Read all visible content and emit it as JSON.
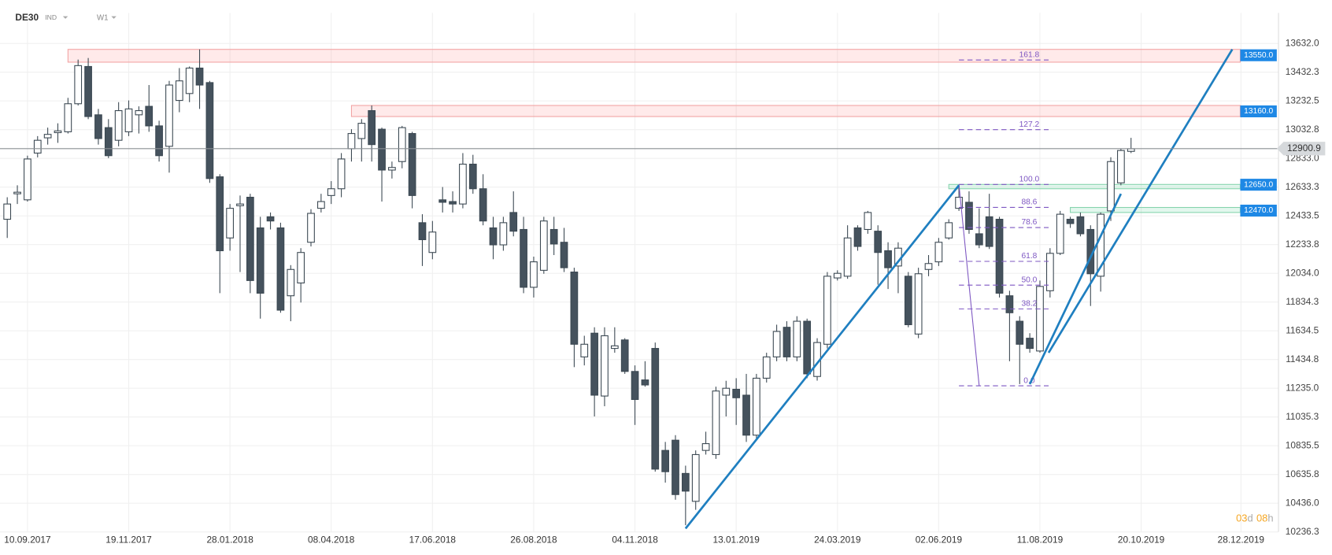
{
  "header": {
    "symbol": "DE30",
    "market": "IND",
    "timeframe": "W1"
  },
  "countdown": {
    "days": "03",
    "days_unit": "d",
    "hours": "08",
    "hours_unit": "h"
  },
  "chart_data": {
    "type": "candlestick",
    "x": [
      "27.08.2017",
      "03.09.2017",
      "10.09.2017",
      "17.09.2017",
      "24.09.2017",
      "01.10.2017",
      "08.10.2017",
      "15.10.2017",
      "22.10.2017",
      "29.10.2017",
      "05.11.2017",
      "12.11.2017",
      "19.11.2017",
      "26.11.2017",
      "03.12.2017",
      "10.12.2017",
      "17.12.2017",
      "24.12.2017",
      "31.12.2017",
      "07.01.2018",
      "14.01.2018",
      "21.01.2018",
      "28.01.2018",
      "04.02.2018",
      "11.02.2018",
      "18.02.2018",
      "25.02.2018",
      "04.03.2018",
      "11.03.2018",
      "18.03.2018",
      "25.03.2018",
      "01.04.2018",
      "08.04.2018",
      "15.04.2018",
      "22.04.2018",
      "29.04.2018",
      "06.05.2018",
      "13.05.2018",
      "20.05.2018",
      "27.05.2018",
      "03.06.2018",
      "10.06.2018",
      "17.06.2018",
      "24.06.2018",
      "01.07.2018",
      "08.07.2018",
      "15.07.2018",
      "22.07.2018",
      "29.07.2018",
      "05.08.2018",
      "12.08.2018",
      "19.08.2018",
      "26.08.2018",
      "02.09.2018",
      "09.09.2018",
      "16.09.2018",
      "23.09.2018",
      "30.09.2018",
      "07.10.2018",
      "14.10.2018",
      "21.10.2018",
      "28.10.2018",
      "04.11.2018",
      "11.11.2018",
      "18.11.2018",
      "25.11.2018",
      "02.12.2018",
      "09.12.2018",
      "16.12.2018",
      "23.12.2018",
      "30.12.2018",
      "06.01.2019",
      "13.01.2019",
      "20.01.2019",
      "27.01.2019",
      "03.02.2019",
      "10.02.2019",
      "17.02.2019",
      "24.02.2019",
      "03.03.2019",
      "10.03.2019",
      "17.03.2019",
      "24.03.2019",
      "31.03.2019",
      "07.04.2019",
      "14.04.2019",
      "21.04.2019",
      "28.04.2019",
      "05.05.2019",
      "12.05.2019",
      "19.05.2019",
      "26.05.2019",
      "02.06.2019",
      "09.06.2019",
      "16.06.2019",
      "23.06.2019",
      "30.06.2019",
      "07.07.2019",
      "14.07.2019",
      "21.07.2019",
      "28.07.2019",
      "04.08.2019",
      "11.08.2019",
      "18.08.2019",
      "25.08.2019",
      "01.09.2019",
      "08.09.2019",
      "15.09.2019",
      "22.09.2019",
      "29.09.2019",
      "06.10.2019",
      "13.10.2019"
    ],
    "open": [
      12410,
      12587,
      12545,
      12870,
      12976,
      13012,
      13018,
      13213,
      13472,
      13136,
      13047,
      12959,
      13018,
      13136,
      13195,
      13059,
      12917,
      13236,
      13284,
      13461,
      13360,
      12705,
      12280,
      12504,
      12563,
      12350,
      12427,
      12350,
      11878,
      11967,
      12250,
      12486,
      12575,
      12622,
      12900,
      12971,
      13165,
      13036,
      12752,
      12811,
      13006,
      12386,
      12179,
      12545,
      12533,
      12516,
      12793,
      12622,
      12350,
      12232,
      12457,
      12339,
      11937,
      12055,
      12339,
      12250,
      12043,
      11453,
      11618,
      11181,
      11512,
      11571,
      11352,
      11293,
      11512,
      10803,
      10874,
      10643,
      10449,
      10803,
      10774,
      11187,
      11228,
      11187,
      10909,
      11305,
      11453,
      11659,
      11453,
      11701,
      11317,
      11541,
      12002,
      12014,
      12350,
      12339,
      12327,
      12191,
      12085,
      12014,
      11612,
      12061,
      12114,
      12280,
      12486,
      12528,
      12309,
      12427,
      12410,
      11878,
      11701,
      11583,
      11494,
      11913,
      12173,
      12410,
      12427,
      12339,
      12014,
      12468,
      12663,
      12882
    ],
    "high": [
      12563,
      12646,
      12852,
      12988,
      13047,
      13077,
      13254,
      13520,
      13531,
      13177,
      13106,
      13224,
      13236,
      13195,
      13343,
      13095,
      13372,
      13461,
      13472,
      13591,
      13372,
      12723,
      12516,
      12575,
      12587,
      12427,
      12457,
      12386,
      12091,
      12209,
      12480,
      12587,
      12675,
      12870,
      13036,
      13106,
      13201,
      13047,
      12811,
      13059,
      13018,
      12445,
      12398,
      12634,
      12604,
      12870,
      12858,
      12723,
      12427,
      12427,
      12604,
      12427,
      12150,
      12427,
      12427,
      12350,
      12073,
      11600,
      11659,
      11659,
      11659,
      11583,
      11394,
      11423,
      11553,
      10862,
      10909,
      10697,
      10803,
      10933,
      11246,
      11287,
      11305,
      11335,
      11335,
      11482,
      11677,
      11701,
      11736,
      11719,
      11583,
      12043,
      12055,
      12368,
      12368,
      12468,
      12368,
      12250,
      12250,
      12043,
      12073,
      12161,
      12280,
      12410,
      12646,
      12604,
      12486,
      12587,
      12427,
      11913,
      11736,
      11618,
      11984,
      12209,
      12468,
      12427,
      12457,
      12368,
      12457,
      12841,
      12900,
      12976
    ],
    "low": [
      12280,
      12516,
      12533,
      12840,
      12929,
      12941,
      13006,
      13201,
      13106,
      12929,
      12835,
      12917,
      12988,
      13006,
      13018,
      12811,
      12734,
      13154,
      13224,
      13177,
      12663,
      11896,
      12191,
      12043,
      11896,
      11719,
      12339,
      11760,
      11701,
      11831,
      12221,
      12457,
      12516,
      12563,
      12811,
      12811,
      12811,
      12533,
      12693,
      12764,
      12486,
      12085,
      12132,
      12457,
      12457,
      12486,
      12587,
      12368,
      12132,
      12191,
      12291,
      11896,
      11866,
      12031,
      12161,
      12043,
      11382,
      11394,
      11039,
      11110,
      11482,
      11335,
      10980,
      11246,
      10655,
      10579,
      10460,
      10283,
      10390,
      10774,
      10744,
      11039,
      10980,
      10862,
      10874,
      11275,
      11423,
      11423,
      11423,
      11305,
      11288,
      11512,
      11984,
      11996,
      12191,
      12309,
      11955,
      11925,
      11896,
      11659,
      11583,
      12014,
      12085,
      12268,
      12468,
      12309,
      12209,
      12203,
      11866,
      11423,
      11264,
      11482,
      11482,
      11866,
      12161,
      12350,
      12291,
      11807,
      11907,
      12398,
      12646,
      12870
    ],
    "close": [
      12516,
      12598,
      12829,
      12959,
      13000,
      13024,
      13213,
      13478,
      13124,
      12971,
      12852,
      13165,
      13177,
      13165,
      13059,
      12852,
      13343,
      13372,
      13461,
      13343,
      12693,
      12191,
      12486,
      12516,
      11984,
      11896,
      12398,
      11778,
      12061,
      12179,
      12451,
      12533,
      12622,
      12829,
      13006,
      13077,
      12929,
      12752,
      12770,
      13047,
      12575,
      12268,
      12321,
      12528,
      12516,
      12793,
      12622,
      12398,
      12232,
      12386,
      12327,
      11937,
      12114,
      12398,
      12238,
      12073,
      11541,
      11541,
      11187,
      11600,
      11530,
      11352,
      11157,
      11258,
      10673,
      10655,
      10496,
      10520,
      10774,
      10850,
      11216,
      11235,
      11169,
      10909,
      11305,
      11453,
      11630,
      11453,
      11701,
      11335,
      11553,
      12014,
      12034,
      12280,
      12221,
      12457,
      12179,
      12073,
      12209,
      11677,
      12031,
      12102,
      12250,
      12386,
      12563,
      12339,
      12232,
      12221,
      11896,
      11760,
      11541,
      11512,
      11943,
      12173,
      12445,
      12380,
      12309,
      12031,
      12445,
      12811,
      12888,
      12900
    ],
    "up_color": "#ffffff",
    "down_color": "#45525d",
    "outline_color": "#3b4852",
    "xlim": [
      "22.08.2017",
      "20.01.2020"
    ],
    "xticks": [
      "10.09.2017",
      "19.11.2017",
      "28.01.2018",
      "08.04.2018",
      "17.06.2018",
      "26.08.2018",
      "04.11.2018",
      "13.01.2019",
      "24.03.2019",
      "02.06.2019",
      "11.08.2019",
      "20.10.2019",
      "28.12.2019"
    ],
    "ylim": [
      10236.3,
      13844.6
    ],
    "yticks": [
      {
        "value": 13632,
        "label": "13632.0"
      },
      13432.3,
      13232.5,
      13032.8,
      {
        "value": 12833,
        "label": "12833.0"
      },
      12633.3,
      12433.5,
      12233.8,
      {
        "value": 12034,
        "label": "12034.0"
      },
      11834.3,
      11634.5,
      11434.8,
      {
        "value": 11235,
        "label": "11235.0"
      },
      11035.3,
      10835.5,
      10635.8,
      {
        "value": 10436,
        "label": "10436.0"
      },
      10236.3
    ],
    "grid": true,
    "current_price": 12900.9,
    "zones": [
      {
        "price": {
          "value": 13550,
          "label": "13550.0"
        },
        "low": 13502,
        "high": 13591,
        "from": "08.10.2017",
        "color": "red"
      },
      {
        "price": {
          "value": 13160,
          "label": "13160.0"
        },
        "low": 13124,
        "high": 13201,
        "from": "22.04.2018",
        "color": "red"
      },
      {
        "price": {
          "value": 12650,
          "label": "12650.0"
        },
        "low": 12622,
        "high": 12652,
        "from": "09.06.2019",
        "color": "green"
      },
      {
        "price": {
          "value": 12470,
          "label": "12470.0"
        },
        "low": 12457,
        "high": 12492,
        "from": "01.09.2019",
        "color": "green"
      }
    ],
    "trend_lines": [
      {
        "x": [
          "09.12.2018",
          "16.06.2019"
        ],
        "y": [
          10260,
          12646
        ],
        "color": "#1f7fc0"
      },
      {
        "x": [
          "04.08.2019",
          "06.10.2019"
        ],
        "y": [
          11264,
          12587
        ],
        "color": "#1f7fc0"
      },
      {
        "x": [
          "17.08.2019",
          "22.12.2019"
        ],
        "y": [
          11482,
          13591
        ],
        "color": "#1f7fc0"
      }
    ],
    "fibonacci": {
      "low": 11252,
      "high": 12652,
      "x": [
        "16.06.2019",
        "17.08.2019"
      ],
      "swing_x": [
        "16.06.2019",
        "30.06.2019"
      ],
      "color": "#7e57c2",
      "levels": [
        161.8,
        127.2,
        {
          "value": 100,
          "label": "100.0"
        },
        88.6,
        78.6,
        61.8,
        {
          "value": 50,
          "label": "50.0"
        },
        38.2,
        {
          "value": 0,
          "label": "0.0"
        }
      ]
    }
  }
}
